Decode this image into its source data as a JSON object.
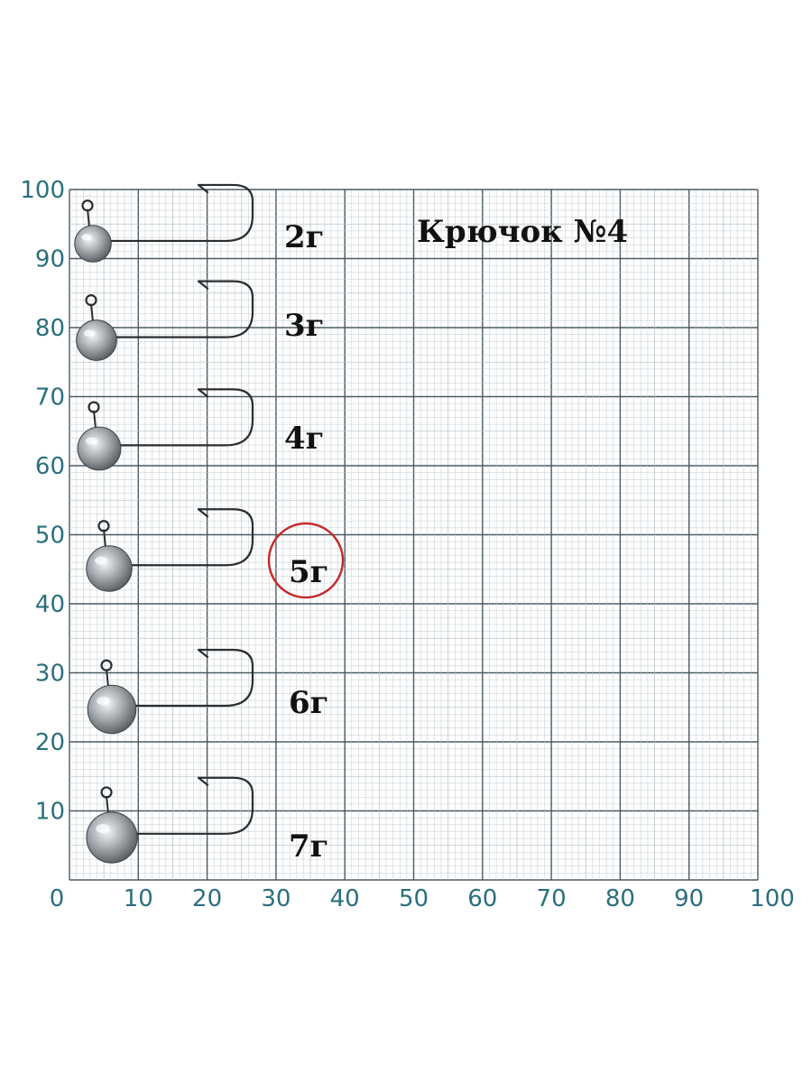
{
  "title": "Крючок №4",
  "axis": {
    "y_ticks": [
      "100",
      "90",
      "80",
      "70",
      "60",
      "50",
      "40",
      "30",
      "20",
      "10"
    ],
    "x_ticks": [
      "0",
      "10",
      "20",
      "30",
      "40",
      "50",
      "60",
      "70",
      "80",
      "90",
      "100"
    ]
  },
  "jigs": [
    {
      "weight": "2г",
      "size": 0.78
    },
    {
      "weight": "3г",
      "size": 0.86
    },
    {
      "weight": "4г",
      "size": 0.92
    },
    {
      "weight": "5г",
      "size": 0.97
    },
    {
      "weight": "6г",
      "size": 1.03
    },
    {
      "weight": "7г",
      "size": 1.08
    }
  ],
  "highlight_weight": "5г",
  "colors": {
    "grid_major": "#4a5a63",
    "grid_minor": "#b9c4ca",
    "axis_text": "#2b6f7d",
    "highlight_circle": "#c62b2b",
    "lead": "#8e9398"
  }
}
